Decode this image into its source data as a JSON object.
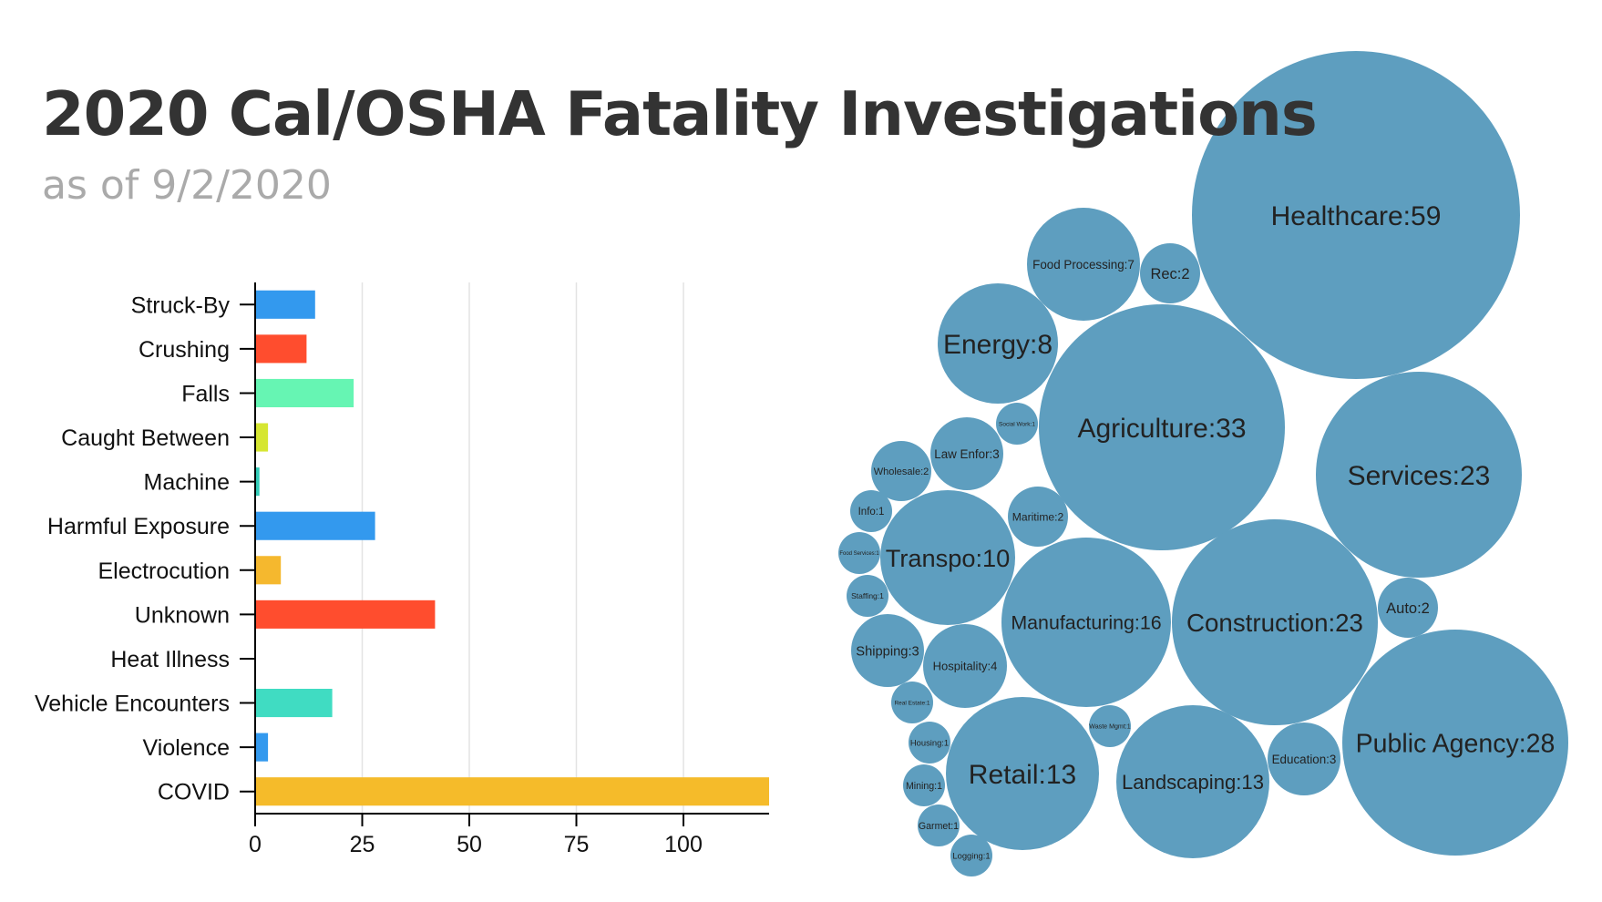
{
  "header": {
    "title": "2020 Cal/OSHA Fatality Investigations",
    "subtitle": "as of 9/2/2020"
  },
  "chart_data": [
    {
      "type": "bar",
      "orientation": "horizontal",
      "categories": [
        "Struck-By",
        "Crushing",
        "Falls",
        "Caught Between",
        "Machine",
        "Harmful Exposure",
        "Electrocution",
        "Unknown",
        "Heat Illness",
        "Vehicle Encounters",
        "Violence",
        "COVID"
      ],
      "values": [
        14,
        12,
        23,
        3,
        1,
        28,
        6,
        42,
        0,
        18,
        3,
        120
      ],
      "colors": [
        "#3399ee",
        "#ff4d2e",
        "#66f5b3",
        "#d6e632",
        "#33ccb8",
        "#3399ee",
        "#f5b82e",
        "#ff4d2e",
        "#ffffff",
        "#40dcc2",
        "#3399ee",
        "#f5bb2a"
      ],
      "xticks": [
        0,
        25,
        50,
        75,
        100
      ],
      "xlim": [
        0,
        120
      ],
      "grid": true
    },
    {
      "type": "bubble",
      "color": "#5e9ebf",
      "items": [
        {
          "label": "Healthcare:59",
          "value": 59
        },
        {
          "label": "Agriculture:33",
          "value": 33
        },
        {
          "label": "Public Agency:28",
          "value": 28
        },
        {
          "label": "Services:23",
          "value": 23
        },
        {
          "label": "Construction:23",
          "value": 23
        },
        {
          "label": "Manufacturing:16",
          "value": 16
        },
        {
          "label": "Retail:13",
          "value": 13
        },
        {
          "label": "Landscaping:13",
          "value": 13
        },
        {
          "label": "Transpo:10",
          "value": 10
        },
        {
          "label": "Energy:8",
          "value": 8
        },
        {
          "label": "Food Processing:7",
          "value": 7
        },
        {
          "label": "Hospitality:4",
          "value": 4
        },
        {
          "label": "Law Enfor:3",
          "value": 3
        },
        {
          "label": "Shipping:3",
          "value": 3
        },
        {
          "label": "Education:3",
          "value": 3
        },
        {
          "label": "Rec:2",
          "value": 2
        },
        {
          "label": "Wholesale:2",
          "value": 2
        },
        {
          "label": "Maritime:2",
          "value": 2
        },
        {
          "label": "Auto:2",
          "value": 2
        },
        {
          "label": "Social Work:1",
          "value": 1
        },
        {
          "label": "Info:1",
          "value": 1
        },
        {
          "label": "Food Services:1",
          "value": 1
        },
        {
          "label": "Staffing:1",
          "value": 1
        },
        {
          "label": "Real Estate:1",
          "value": 1
        },
        {
          "label": "Waste Mgmt:1",
          "value": 1
        },
        {
          "label": "Housing:1",
          "value": 1
        },
        {
          "label": "Mining:1",
          "value": 1
        },
        {
          "label": "Garmet:1",
          "value": 1
        },
        {
          "label": "Logging:1",
          "value": 1
        }
      ]
    }
  ]
}
